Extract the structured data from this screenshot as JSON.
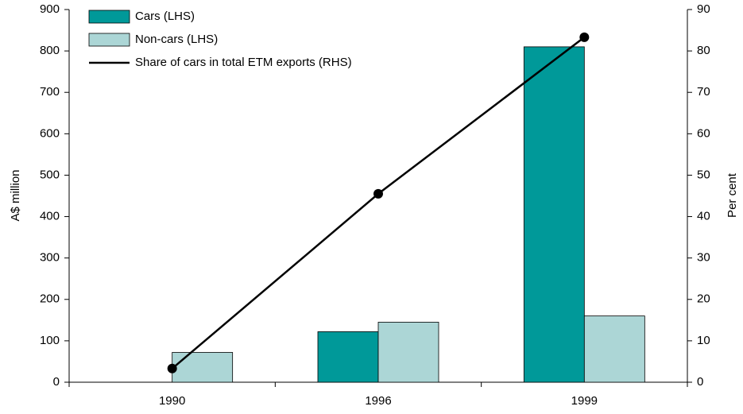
{
  "chart_data": {
    "type": "bar",
    "categories": [
      "1990",
      "1996",
      "1999"
    ],
    "series": [
      {
        "name": "Cars (LHS)",
        "color": "#009999",
        "values": [
          0,
          122,
          810
        ]
      },
      {
        "name": "Non-cars (LHS)",
        "color": "#acd6d6",
        "values": [
          72,
          145,
          160
        ]
      },
      {
        "name": "Share of cars in total ETM exports (RHS)",
        "type": "line",
        "axis": "y2",
        "color": "#000000",
        "values": [
          3.3,
          45.5,
          83.3
        ]
      }
    ],
    "ylabel": "A$ million",
    "y2label": "Per cent",
    "ylim": [
      0,
      900
    ],
    "yticks": [
      0,
      100,
      200,
      300,
      400,
      500,
      600,
      700,
      800,
      900
    ],
    "y2lim": [
      0,
      90
    ],
    "y2ticks": [
      0,
      10,
      20,
      30,
      40,
      50,
      60,
      70,
      80,
      90
    ],
    "grid": false,
    "legend": "upper left"
  }
}
